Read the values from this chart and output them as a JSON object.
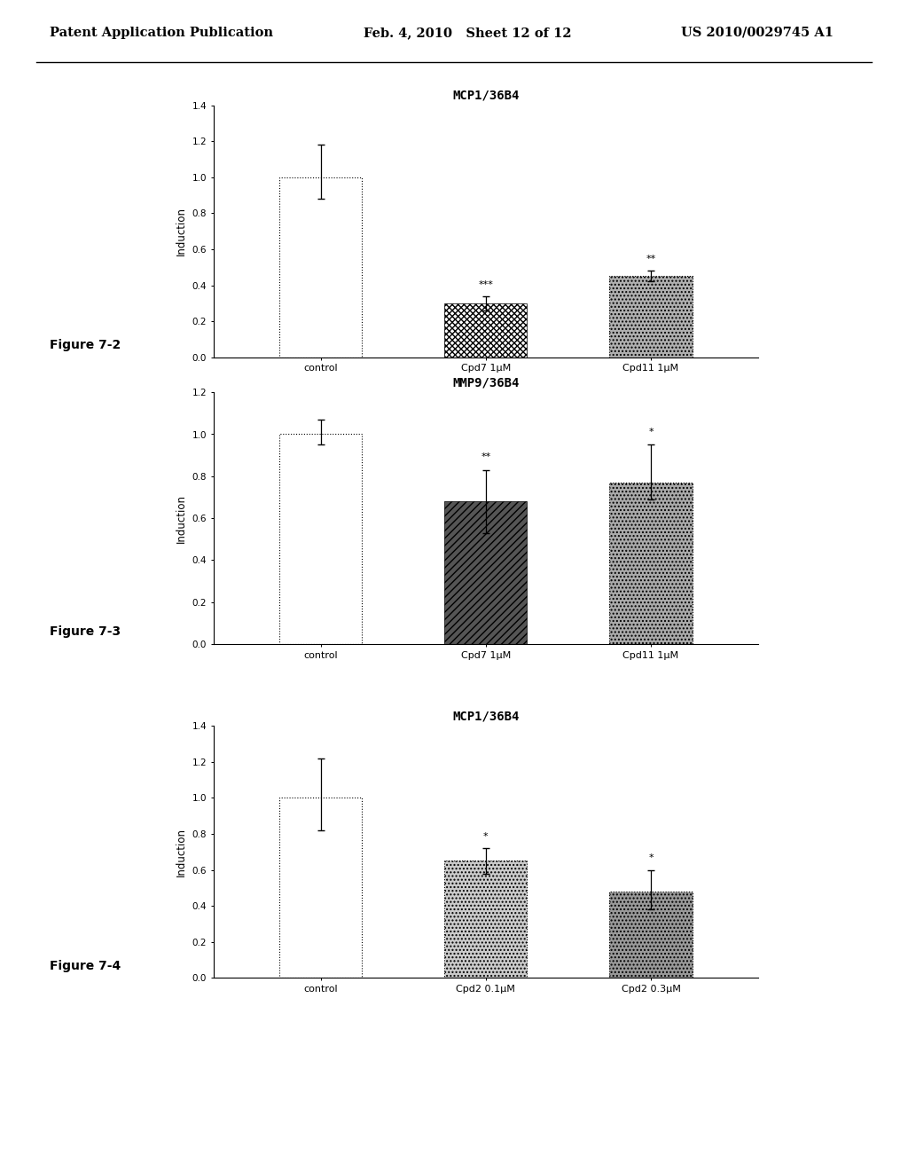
{
  "header_left": "Patent Application Publication",
  "header_mid": "Feb. 4, 2010   Sheet 12 of 12",
  "header_right": "US 2010/0029745 A1",
  "chart1": {
    "title": "MCP1/36B4",
    "figure_label": "Figure 7-2",
    "categories": [
      "control",
      "Cpd7 1μM",
      "Cpd11 1μM"
    ],
    "values": [
      1.0,
      0.3,
      0.45
    ],
    "errors_lo": [
      0.12,
      0.04,
      0.03
    ],
    "errors_hi": [
      0.18,
      0.04,
      0.03
    ],
    "significance": [
      "",
      "***",
      "**"
    ],
    "ylim": [
      0,
      1.4
    ],
    "yticks": [
      0.0,
      0.2,
      0.4,
      0.6,
      0.8,
      1.0,
      1.2,
      1.4
    ],
    "ylabel": "Induction",
    "bar_styles": [
      "white_dotted",
      "diagonal_black",
      "stipple_gray"
    ]
  },
  "chart2": {
    "title": "MMP9/36B4",
    "figure_label": "Figure 7-3",
    "categories": [
      "control",
      "Cpd7 1μM",
      "Cpd11 1μM"
    ],
    "values": [
      1.0,
      0.68,
      0.77
    ],
    "errors_lo": [
      0.05,
      0.15,
      0.08
    ],
    "errors_hi": [
      0.07,
      0.15,
      0.18
    ],
    "significance": [
      "",
      "**",
      "*"
    ],
    "ylim": [
      0,
      1.2
    ],
    "yticks": [
      0.0,
      0.2,
      0.4,
      0.6,
      0.8,
      1.0,
      1.2
    ],
    "ylabel": "Induction",
    "bar_styles": [
      "white_dotted",
      "diagonal_dark_fill",
      "stipple_medium"
    ]
  },
  "chart3": {
    "title": "MCP1/36B4",
    "figure_label": "Figure 7-4",
    "categories": [
      "control",
      "Cpd2 0.1μM",
      "Cpd2 0.3μM"
    ],
    "values": [
      1.0,
      0.65,
      0.48
    ],
    "errors_lo": [
      0.18,
      0.07,
      0.1
    ],
    "errors_hi": [
      0.22,
      0.07,
      0.12
    ],
    "significance": [
      "",
      "*",
      "*"
    ],
    "ylim": [
      0,
      1.4
    ],
    "yticks": [
      0.0,
      0.2,
      0.4,
      0.6,
      0.8,
      1.0,
      1.2,
      1.4
    ],
    "ylabel": "Induction",
    "bar_styles": [
      "white_dotted",
      "light_stipple",
      "medium_stipple"
    ]
  },
  "bar_width": 0.5,
  "fig_bg": "#ffffff"
}
